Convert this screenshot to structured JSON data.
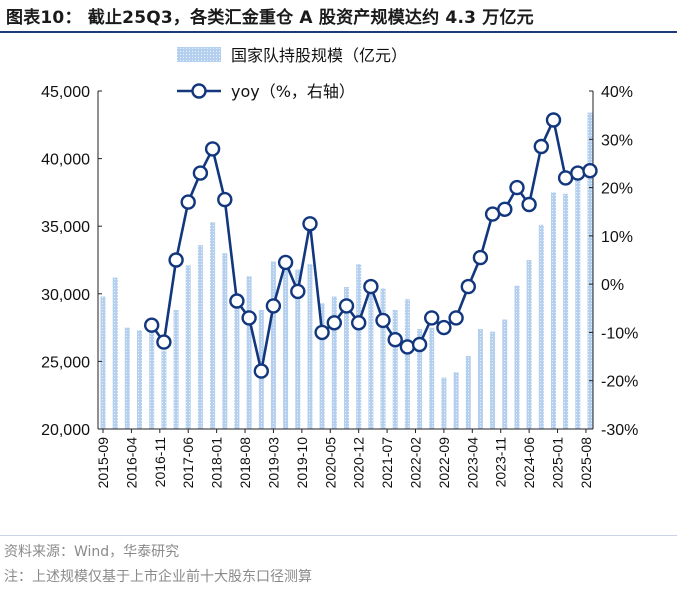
{
  "title": "图表10：  截止25Q3，各类汇金重仓 A 股资产规模达约 4.3 万亿元",
  "source_note": "资料来源：Wind，华泰研究",
  "footnote": "注：上述规模仅基于上市企业前十大股东口径测算",
  "colors": {
    "bar": "#b4d0ee",
    "line": "#13377e",
    "marker_fill": "#ffffff",
    "title_rule": "#1b3a7a"
  },
  "chart_data": {
    "type": "bar+line",
    "legend_position": "top-center",
    "grid": false,
    "x_tick_labels": [
      "2015-09",
      "2016-04",
      "2016-11",
      "2017-06",
      "2018-01",
      "2018-08",
      "2019-03",
      "2019-10",
      "2020-05",
      "2020-12",
      "2021-07",
      "2022-02",
      "2022-09",
      "2023-04",
      "2023-11",
      "2024-06",
      "2025-01",
      "2025-08"
    ],
    "y_left": {
      "lim": [
        20000,
        45000
      ],
      "ticks": [
        "20,000",
        "25,000",
        "30,000",
        "35,000",
        "40,000",
        "45,000"
      ]
    },
    "y_right": {
      "lim": [
        -30,
        40
      ],
      "ticks": [
        "-30%",
        "-20%",
        "-10%",
        "0%",
        "10%",
        "20%",
        "30%",
        "40%"
      ]
    },
    "bar_series": {
      "name": "国家队持股规模（亿元）",
      "x": [
        "2015-09",
        "2015-12",
        "2016-03",
        "2016-06",
        "2016-09",
        "2016-12",
        "2017-03",
        "2017-06",
        "2017-09",
        "2017-12",
        "2018-03",
        "2018-06",
        "2018-09",
        "2018-12",
        "2019-03",
        "2019-06",
        "2019-09",
        "2019-12",
        "2020-03",
        "2020-06",
        "2020-09",
        "2020-12",
        "2021-03",
        "2021-06",
        "2021-09",
        "2021-12",
        "2022-03",
        "2022-06",
        "2022-09",
        "2022-12",
        "2023-03",
        "2023-06",
        "2023-09",
        "2023-12",
        "2024-03",
        "2024-06",
        "2024-09",
        "2024-12",
        "2025-03",
        "2025-06",
        "2025-09"
      ],
      "values": [
        29800,
        31200,
        27500,
        27300,
        27300,
        25800,
        28800,
        32100,
        33600,
        35300,
        33000,
        30000,
        31300,
        28800,
        32400,
        31800,
        31800,
        32200,
        29300,
        29800,
        30500,
        32200,
        30300,
        30400,
        28800,
        29600,
        27400,
        27500,
        23800,
        24200,
        25400,
        27400,
        27200,
        28100,
        30600,
        32500,
        35100,
        37500,
        37400,
        38500,
        43400
      ]
    },
    "line_series": {
      "name": "yoy（%，右轴）",
      "x": [
        "2016-09",
        "2016-12",
        "2017-03",
        "2017-06",
        "2017-09",
        "2017-12",
        "2018-03",
        "2018-06",
        "2018-09",
        "2018-12",
        "2019-03",
        "2019-06",
        "2019-09",
        "2019-12",
        "2020-03",
        "2020-06",
        "2020-09",
        "2020-12",
        "2021-03",
        "2021-06",
        "2021-09",
        "2021-12",
        "2022-03",
        "2022-06",
        "2022-09",
        "2022-12",
        "2023-03",
        "2023-06",
        "2023-09",
        "2023-12",
        "2024-03",
        "2024-06",
        "2024-09",
        "2024-12",
        "2025-03",
        "2025-06",
        "2025-09"
      ],
      "values": [
        -8.5,
        -12,
        5,
        17,
        23,
        28,
        17.5,
        -3.5,
        -7,
        -18,
        -4.5,
        4.5,
        -1.5,
        12.5,
        -10,
        -8,
        -4.5,
        -8,
        -0.5,
        -7.5,
        -11.5,
        -13,
        -12.5,
        -7,
        -9,
        -7,
        -0.5,
        5.5,
        14.5,
        15.5,
        20,
        16.5,
        28.5,
        34,
        22,
        23,
        23.5
      ]
    }
  }
}
